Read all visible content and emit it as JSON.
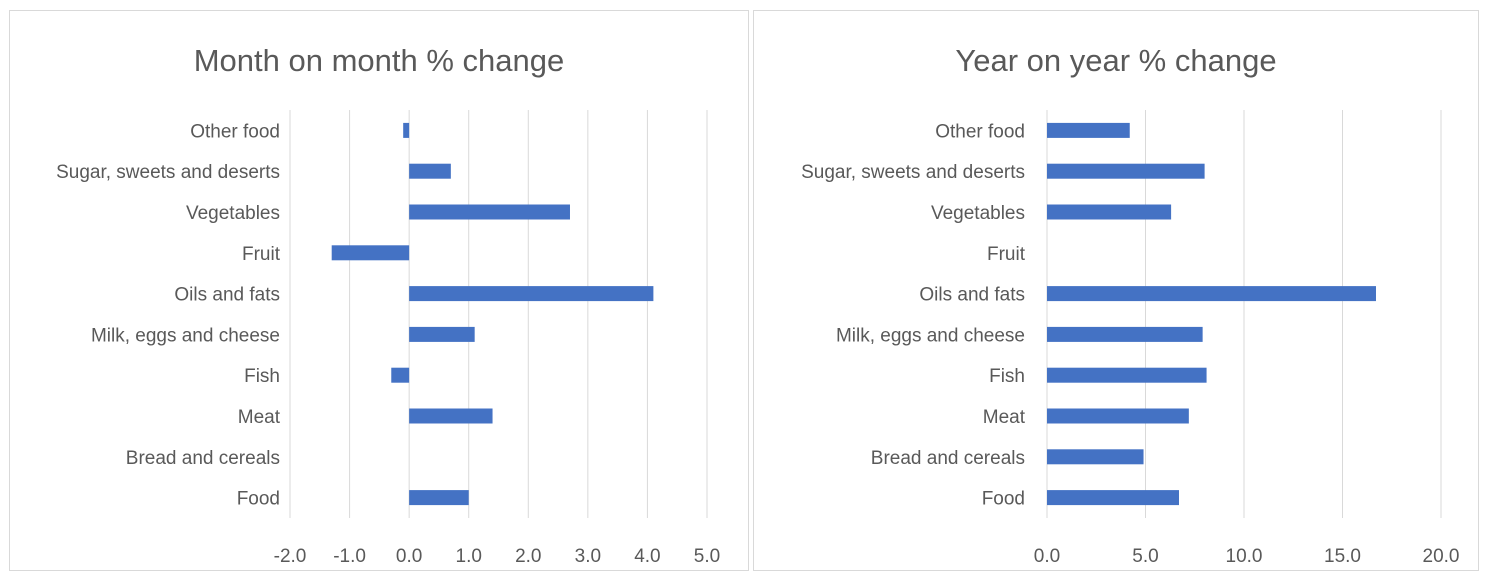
{
  "colors": {
    "bar": "#4472c4",
    "grid": "#d9d9d9",
    "text": "#595959"
  },
  "chart_data": [
    {
      "type": "bar",
      "orientation": "horizontal",
      "title": "Month on month % change",
      "categories": [
        "Food",
        "Bread and cereals",
        "Meat",
        "Fish",
        "Milk, eggs and cheese",
        "Oils and fats",
        "Fruit",
        "Vegetables",
        "Sugar, sweets and deserts",
        "Other food"
      ],
      "values": [
        1.0,
        0.0,
        1.4,
        -0.3,
        1.1,
        4.1,
        -1.3,
        2.7,
        0.7,
        -0.1
      ],
      "xlim": [
        -2,
        5
      ],
      "xticks": [
        "-2.0",
        "-1.0",
        "0.0",
        "1.0",
        "2.0",
        "3.0",
        "4.0",
        "5.0"
      ],
      "grid": true,
      "legend": false
    },
    {
      "type": "bar",
      "orientation": "horizontal",
      "title": "Year on year % change",
      "categories": [
        "Food",
        "Bread and cereals",
        "Meat",
        "Fish",
        "Milk, eggs and cheese",
        "Oils and fats",
        "Fruit",
        "Vegetables",
        "Sugar, sweets and deserts",
        "Other food"
      ],
      "values": [
        6.7,
        4.9,
        7.2,
        8.1,
        7.9,
        16.7,
        0.0,
        6.3,
        8.0,
        4.2
      ],
      "xlim": [
        0,
        20
      ],
      "xticks": [
        "0.0",
        "5.0",
        "10.0",
        "15.0",
        "20.0"
      ],
      "grid": true,
      "legend": false
    }
  ]
}
